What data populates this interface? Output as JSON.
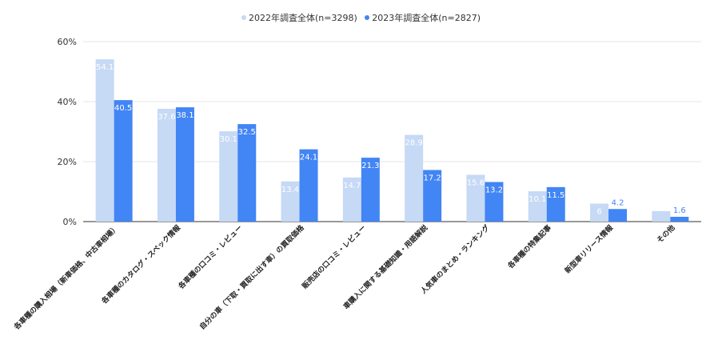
{
  "chart_data": {
    "type": "bar",
    "categories": [
      "各車種の購入相場（新車価格、中古車相場）",
      "各車種のカタログ・スペック情報",
      "各車種の口コミ・レビュー",
      "自分の車（下取・買取に出す車）の買取価格",
      "販売店の口コミ・レビュー",
      "車購入に関する基礎知識・用語解説",
      "人気車のまとめ・ランキング",
      "各車種の特集記事",
      "新型車リリース情報",
      "その他"
    ],
    "series": [
      {
        "name": "2022年調査全体(n=3298)",
        "color": "#c6d9f5",
        "values": [
          54.1,
          37.6,
          30.1,
          13.4,
          14.7,
          28.9,
          15.6,
          10.1,
          6,
          3.5
        ],
        "labels": [
          "54.1",
          "37.6",
          "30.1",
          "13.4",
          "14.7",
          "28.9",
          "15.6",
          "10.1",
          "6",
          ""
        ]
      },
      {
        "name": "2023年調査全体(n=2827)",
        "color": "#4285f4",
        "values": [
          40.5,
          38.1,
          32.5,
          24.1,
          21.3,
          17.2,
          13.2,
          11.5,
          4.2,
          1.6
        ],
        "labels": [
          "40.5",
          "38.1",
          "32.5",
          "24.1",
          "21.3",
          "17.2",
          "13.2",
          "11.5",
          "4.2",
          "1.6"
        ]
      }
    ],
    "y_ticks": [
      "0%",
      "20%",
      "40%",
      "60%"
    ],
    "ylim": [
      0,
      60
    ],
    "grid": true,
    "legend_position": "top-center",
    "label_color_dark": "#4285f4",
    "label_color_light": "#ffffff"
  }
}
